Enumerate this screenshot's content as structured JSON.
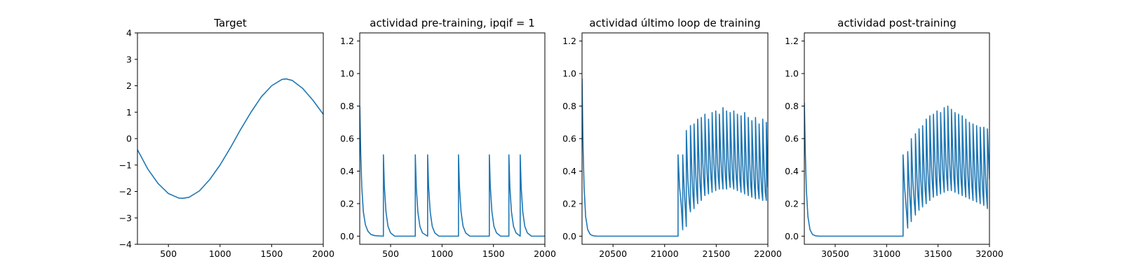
{
  "colors": {
    "series": "#1f77b4",
    "background": "#ffffff",
    "axes": "#000000"
  },
  "chart_data": [
    {
      "type": "line",
      "title": "Target",
      "xlim": [
        200,
        2000
      ],
      "ylim": [
        -4,
        4
      ],
      "xticks": [
        500,
        1000,
        1500,
        2000
      ],
      "yticks": [
        -4,
        -3,
        -2,
        -1,
        0,
        1,
        2,
        3,
        4
      ],
      "xtick_labels": [
        "500",
        "1000",
        "1500",
        "2000"
      ],
      "ytick_labels": [
        "−4",
        "−3",
        "−2",
        "−1",
        "0",
        "1",
        "2",
        "3",
        "4"
      ],
      "series": [
        {
          "x": [
            200,
            300,
            400,
            500,
            600,
            640,
            700,
            800,
            900,
            1000,
            1100,
            1200,
            1300,
            1400,
            1500,
            1600,
            1640,
            1700,
            1800,
            1900,
            2000
          ],
          "y": [
            -0.42,
            -1.15,
            -1.7,
            -2.08,
            -2.25,
            -2.26,
            -2.22,
            -1.98,
            -1.55,
            -1.0,
            -0.35,
            0.35,
            1.0,
            1.58,
            2.0,
            2.24,
            2.26,
            2.2,
            1.9,
            1.45,
            0.92
          ]
        }
      ]
    },
    {
      "type": "line",
      "title": "actividad pre-training, ipqif = 1",
      "xlim": [
        200,
        2000
      ],
      "ylim": [
        -0.05,
        1.25
      ],
      "xticks": [
        500,
        1000,
        1500,
        2000
      ],
      "yticks": [
        0.0,
        0.2,
        0.4,
        0.6,
        0.8,
        1.0,
        1.2
      ],
      "xtick_labels": [
        "500",
        "1000",
        "1500",
        "2000"
      ],
      "ytick_labels": [
        "0.0",
        "0.2",
        "0.4",
        "0.6",
        "0.8",
        "1.0",
        "1.2"
      ],
      "series": [
        {
          "x": [
            200,
            210,
            220,
            235,
            255,
            280,
            310,
            350,
            430,
            430.1,
            440,
            455,
            475,
            500,
            540,
            740,
            740.1,
            750,
            765,
            785,
            810,
            860,
            860.1,
            870,
            885,
            905,
            930,
            970,
            1160,
            1160.1,
            1170,
            1185,
            1205,
            1230,
            1270,
            1460,
            1460.1,
            1470,
            1485,
            1505,
            1530,
            1570,
            1650,
            1650.1,
            1660,
            1675,
            1695,
            1720,
            1760,
            1760.1,
            1770,
            1785,
            1805,
            1830,
            1870,
            2000
          ],
          "y": [
            0.8,
            0.5,
            0.3,
            0.15,
            0.07,
            0.03,
            0.01,
            0.003,
            0.0,
            0.5,
            0.3,
            0.15,
            0.06,
            0.02,
            0.0,
            0.0,
            0.5,
            0.3,
            0.15,
            0.06,
            0.02,
            0.0,
            0.5,
            0.3,
            0.15,
            0.06,
            0.02,
            0.0,
            0.0,
            0.5,
            0.3,
            0.15,
            0.06,
            0.02,
            0.0,
            0.0,
            0.5,
            0.3,
            0.15,
            0.06,
            0.02,
            0.0,
            0.0,
            0.5,
            0.3,
            0.15,
            0.06,
            0.02,
            0.0,
            0.5,
            0.3,
            0.15,
            0.06,
            0.02,
            0.0,
            0.0
          ]
        }
      ]
    },
    {
      "type": "line",
      "title": "actividad último loop de training",
      "xlim": [
        20200,
        22000
      ],
      "ylim": [
        -0.05,
        1.25
      ],
      "xticks": [
        20500,
        21000,
        21500,
        22000
      ],
      "yticks": [
        0.0,
        0.2,
        0.4,
        0.6,
        0.8,
        1.0,
        1.2
      ],
      "xtick_labels": [
        "20500",
        "21000",
        "21500",
        "22000"
      ],
      "ytick_labels": [
        "0.0",
        "0.2",
        "0.4",
        "0.6",
        "0.8",
        "1.0",
        "1.2"
      ],
      "series": [
        {
          "x": [
            20200,
            20210,
            20220,
            20235,
            20255,
            20280,
            20310,
            20350,
            21130,
            21130.1,
            21145,
            21160,
            21175,
            21175.1,
            21190,
            21205,
            21210,
            21210.1,
            21225,
            21240,
            21250,
            21250.1,
            21265,
            21275,
            21285,
            21285.1,
            21300,
            21310,
            21320,
            21320.1,
            21335,
            21345,
            21355,
            21355.1,
            21370,
            21380,
            21390,
            21390.1,
            21405,
            21415,
            21425,
            21425.1,
            21440,
            21450,
            21460,
            21460.1,
            21475,
            21485,
            21495,
            21495.1,
            21510,
            21520,
            21530,
            21530.1,
            21545,
            21555,
            21565,
            21565.1,
            21580,
            21590,
            21600,
            21600.1,
            21615,
            21625,
            21635,
            21635.1,
            21650,
            21660,
            21670,
            21670.1,
            21685,
            21695,
            21705,
            21705.1,
            21720,
            21730,
            21740,
            21740.1,
            21755,
            21765,
            21775,
            21775.1,
            21790,
            21800,
            21810,
            21810.1,
            21825,
            21835,
            21845,
            21845.1,
            21860,
            21870,
            21880,
            21880.1,
            21895,
            21905,
            21915,
            21915.1,
            21930,
            21940,
            21950,
            21950.1,
            21965,
            21975,
            21985,
            21985.1,
            22000
          ],
          "y": [
            0.97,
            0.55,
            0.3,
            0.12,
            0.04,
            0.01,
            0.002,
            0.0,
            0.0,
            0.5,
            0.3,
            0.2,
            0.04,
            0.5,
            0.28,
            0.12,
            0.06,
            0.65,
            0.35,
            0.2,
            0.15,
            0.68,
            0.38,
            0.25,
            0.17,
            0.69,
            0.4,
            0.28,
            0.2,
            0.72,
            0.42,
            0.3,
            0.22,
            0.73,
            0.45,
            0.33,
            0.25,
            0.75,
            0.46,
            0.34,
            0.26,
            0.72,
            0.47,
            0.35,
            0.27,
            0.76,
            0.48,
            0.36,
            0.28,
            0.77,
            0.48,
            0.36,
            0.29,
            0.75,
            0.48,
            0.36,
            0.29,
            0.79,
            0.48,
            0.36,
            0.29,
            0.77,
            0.48,
            0.36,
            0.3,
            0.76,
            0.48,
            0.35,
            0.29,
            0.77,
            0.47,
            0.35,
            0.28,
            0.75,
            0.47,
            0.34,
            0.27,
            0.74,
            0.46,
            0.33,
            0.26,
            0.76,
            0.45,
            0.32,
            0.25,
            0.73,
            0.44,
            0.31,
            0.24,
            0.71,
            0.43,
            0.3,
            0.23,
            0.73,
            0.42,
            0.29,
            0.23,
            0.69,
            0.41,
            0.28,
            0.22,
            0.72,
            0.4,
            0.27,
            0.22,
            0.7,
            0.3
          ]
        }
      ]
    },
    {
      "type": "line",
      "title": "actividad post-training",
      "xlim": [
        30200,
        32000
      ],
      "ylim": [
        -0.05,
        1.25
      ],
      "xticks": [
        30500,
        31000,
        31500,
        32000
      ],
      "yticks": [
        0.0,
        0.2,
        0.4,
        0.6,
        0.8,
        1.0,
        1.2
      ],
      "xtick_labels": [
        "30500",
        "31000",
        "31500",
        "32000"
      ],
      "ytick_labels": [
        "0.0",
        "0.2",
        "0.4",
        "0.6",
        "0.8",
        "1.0",
        "1.2"
      ],
      "series": [
        {
          "x": [
            30200,
            30210,
            30220,
            30235,
            30255,
            30280,
            30310,
            30350,
            31160,
            31160.1,
            31175,
            31190,
            31205,
            31205.1,
            31220,
            31235,
            31240,
            31240.1,
            31255,
            31270,
            31280,
            31280.1,
            31295,
            31305,
            31315,
            31315.1,
            31330,
            31340,
            31350,
            31350.1,
            31365,
            31375,
            31385,
            31385.1,
            31400,
            31410,
            31420,
            31420.1,
            31435,
            31445,
            31455,
            31455.1,
            31470,
            31480,
            31490,
            31490.1,
            31505,
            31515,
            31525,
            31525.1,
            31540,
            31550,
            31560,
            31560.1,
            31575,
            31585,
            31595,
            31595.1,
            31610,
            31620,
            31630,
            31630.1,
            31645,
            31655,
            31665,
            31665.1,
            31680,
            31690,
            31700,
            31700.1,
            31715,
            31725,
            31735,
            31735.1,
            31750,
            31760,
            31770,
            31770.1,
            31785,
            31795,
            31805,
            31805.1,
            31820,
            31830,
            31840,
            31840.1,
            31855,
            31865,
            31875,
            31875.1,
            31890,
            31900,
            31910,
            31910.1,
            31925,
            31935,
            31945,
            31945.1,
            31960,
            31970,
            31980,
            31980.1,
            32000
          ],
          "y": [
            0.82,
            0.5,
            0.28,
            0.12,
            0.04,
            0.01,
            0.002,
            0.0,
            0.0,
            0.5,
            0.3,
            0.18,
            0.05,
            0.52,
            0.3,
            0.15,
            0.09,
            0.6,
            0.34,
            0.2,
            0.13,
            0.63,
            0.36,
            0.24,
            0.16,
            0.66,
            0.38,
            0.26,
            0.18,
            0.68,
            0.4,
            0.28,
            0.2,
            0.72,
            0.42,
            0.3,
            0.22,
            0.74,
            0.44,
            0.32,
            0.24,
            0.75,
            0.46,
            0.33,
            0.25,
            0.77,
            0.47,
            0.34,
            0.26,
            0.76,
            0.48,
            0.35,
            0.27,
            0.79,
            0.48,
            0.36,
            0.28,
            0.8,
            0.48,
            0.36,
            0.28,
            0.78,
            0.48,
            0.35,
            0.27,
            0.76,
            0.47,
            0.34,
            0.26,
            0.75,
            0.46,
            0.33,
            0.25,
            0.74,
            0.45,
            0.32,
            0.24,
            0.72,
            0.44,
            0.31,
            0.23,
            0.7,
            0.43,
            0.3,
            0.22,
            0.69,
            0.42,
            0.29,
            0.21,
            0.68,
            0.41,
            0.28,
            0.2,
            0.67,
            0.4,
            0.27,
            0.19,
            0.67,
            0.39,
            0.26,
            0.17,
            0.66,
            0.35
          ]
        }
      ]
    }
  ]
}
